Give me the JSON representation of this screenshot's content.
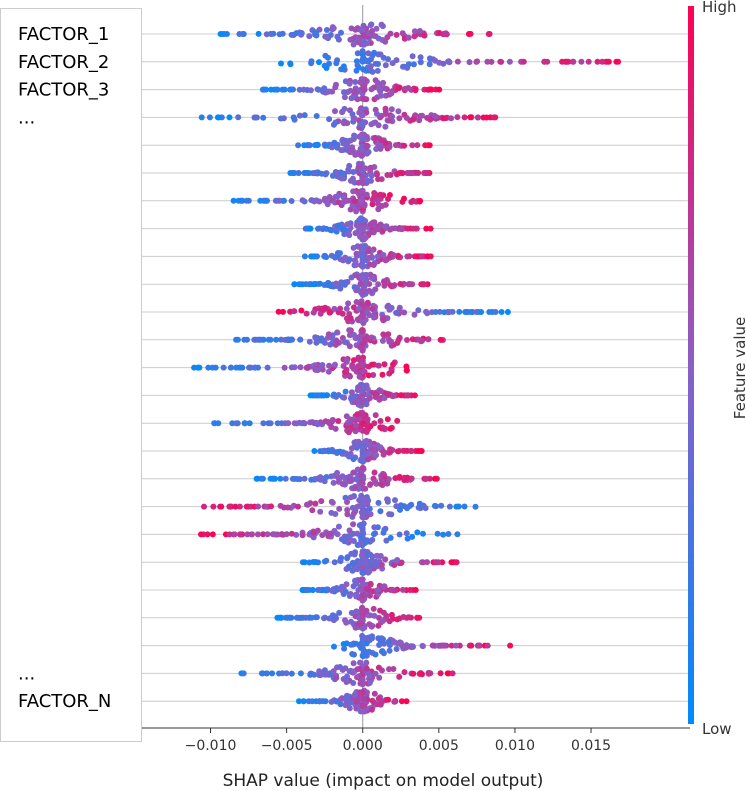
{
  "chart_data": {
    "type": "scatter",
    "subtype": "shap-beeswarm",
    "xlabel": "SHAP value (impact on model output)",
    "xlim": [
      -0.0145,
      0.0215
    ],
    "xticks": [
      -0.01,
      -0.005,
      0.0,
      0.005,
      0.01,
      0.015
    ],
    "xtick_labels": [
      "−0.010",
      "−0.005",
      "0.000",
      "0.005",
      "0.010",
      "0.015"
    ],
    "feature_labels": [
      "FACTOR_1",
      "FACTOR_2",
      "FACTOR_3",
      "...",
      "...",
      "FACTOR_N"
    ],
    "feature_label_rows": [
      0,
      1,
      2,
      3,
      23,
      24
    ],
    "row_count": 25,
    "colorbar": {
      "label": "Feature value",
      "high_label": "High",
      "low_label": "Low",
      "low_color": "#008bfb",
      "high_color": "#ff0052"
    },
    "rows": [
      {
        "range": [
          -0.0097,
          0.0088
        ],
        "high_side": "right"
      },
      {
        "range": [
          -0.0055,
          0.0175
        ],
        "high_side": "right"
      },
      {
        "range": [
          -0.007,
          0.0052
        ],
        "high_side": "right"
      },
      {
        "range": [
          -0.0107,
          0.0095
        ],
        "high_side": "right"
      },
      {
        "range": [
          -0.0045,
          0.0045
        ],
        "high_side": "right"
      },
      {
        "range": [
          -0.005,
          0.0045
        ],
        "high_side": "right"
      },
      {
        "range": [
          -0.009,
          0.004
        ],
        "high_side": "right"
      },
      {
        "range": [
          -0.004,
          0.0045
        ],
        "high_side": "right"
      },
      {
        "range": [
          -0.004,
          0.0045
        ],
        "high_side": "right"
      },
      {
        "range": [
          -0.0045,
          0.0045
        ],
        "high_side": "right"
      },
      {
        "range": [
          -0.006,
          0.01
        ],
        "high_side": "left"
      },
      {
        "range": [
          -0.009,
          0.006
        ],
        "high_side": "right"
      },
      {
        "range": [
          -0.0113,
          0.003
        ],
        "high_side": "right"
      },
      {
        "range": [
          -0.0035,
          0.0035
        ],
        "high_side": "right"
      },
      {
        "range": [
          -0.01,
          0.0025
        ],
        "high_side": "right"
      },
      {
        "range": [
          -0.0035,
          0.004
        ],
        "high_side": "right"
      },
      {
        "range": [
          -0.007,
          0.005
        ],
        "high_side": "right"
      },
      {
        "range": [
          -0.0105,
          0.0078
        ],
        "high_side": "left"
      },
      {
        "range": [
          -0.0107,
          0.0065
        ],
        "high_side": "left"
      },
      {
        "range": [
          -0.004,
          0.0063
        ],
        "high_side": "right"
      },
      {
        "range": [
          -0.004,
          0.0035
        ],
        "high_side": "right"
      },
      {
        "range": [
          -0.0058,
          0.0043
        ],
        "high_side": "right"
      },
      {
        "range": [
          -0.003,
          0.0098
        ],
        "high_side": "right"
      },
      {
        "range": [
          -0.008,
          0.006
        ],
        "high_side": "right"
      },
      {
        "range": [
          -0.0042,
          0.003
        ],
        "high_side": "right"
      }
    ]
  }
}
